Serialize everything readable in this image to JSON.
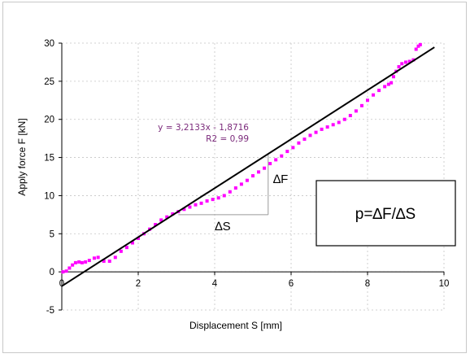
{
  "chart_data": {
    "type": "scatter",
    "xlabel": "Displacement S [mm]",
    "ylabel": "Apply force F [kN]",
    "xlim": [
      0,
      10
    ],
    "ylim": [
      -5,
      30
    ],
    "x_ticks": [
      "0",
      "2",
      "4",
      "6",
      "8",
      "10"
    ],
    "y_ticks": [
      "-5",
      "0",
      "5",
      "10",
      "15",
      "20",
      "25",
      "30"
    ],
    "grid": "dashed",
    "colors": {
      "points": "#ff00ff",
      "trendline": "#000000",
      "equation": "#7b2a7b"
    },
    "series": [
      {
        "values": [
          [
            0.03,
            0.0
          ],
          [
            0.12,
            0.1
          ],
          [
            0.2,
            0.5
          ],
          [
            0.28,
            0.9
          ],
          [
            0.36,
            1.2
          ],
          [
            0.45,
            1.3
          ],
          [
            0.53,
            1.2
          ],
          [
            0.62,
            1.3
          ],
          [
            0.72,
            1.5
          ],
          [
            0.85,
            1.8
          ],
          [
            0.95,
            1.9
          ],
          [
            1.1,
            1.4
          ],
          [
            1.25,
            1.4
          ],
          [
            1.4,
            1.9
          ],
          [
            1.55,
            2.7
          ],
          [
            1.7,
            3.2
          ],
          [
            1.85,
            3.8
          ],
          [
            2.0,
            4.4
          ],
          [
            2.15,
            5.0
          ],
          [
            2.3,
            5.6
          ],
          [
            2.45,
            6.2
          ],
          [
            2.6,
            6.8
          ],
          [
            2.75,
            7.2
          ],
          [
            2.9,
            7.6
          ],
          [
            3.05,
            7.9
          ],
          [
            3.2,
            8.2
          ],
          [
            3.35,
            8.5
          ],
          [
            3.5,
            8.8
          ],
          [
            3.65,
            9.0
          ],
          [
            3.8,
            9.3
          ],
          [
            3.95,
            9.5
          ],
          [
            4.1,
            9.7
          ],
          [
            4.25,
            10.0
          ],
          [
            4.4,
            10.5
          ],
          [
            4.55,
            11.0
          ],
          [
            4.7,
            11.5
          ],
          [
            4.85,
            12.0
          ],
          [
            5.0,
            12.6
          ],
          [
            5.15,
            13.1
          ],
          [
            5.3,
            13.6
          ],
          [
            5.45,
            14.2
          ],
          [
            5.6,
            14.7
          ],
          [
            5.75,
            15.2
          ],
          [
            5.9,
            15.8
          ],
          [
            6.05,
            16.3
          ],
          [
            6.2,
            16.9
          ],
          [
            6.35,
            17.4
          ],
          [
            6.5,
            17.9
          ],
          [
            6.65,
            18.3
          ],
          [
            6.8,
            18.7
          ],
          [
            6.95,
            19.0
          ],
          [
            7.1,
            19.3
          ],
          [
            7.25,
            19.6
          ],
          [
            7.4,
            20.0
          ],
          [
            7.55,
            20.5
          ],
          [
            7.7,
            21.1
          ],
          [
            7.85,
            21.8
          ],
          [
            8.0,
            22.5
          ],
          [
            8.15,
            23.2
          ],
          [
            8.3,
            23.8
          ],
          [
            8.45,
            24.3
          ],
          [
            8.55,
            24.6
          ],
          [
            8.62,
            24.8
          ],
          [
            8.68,
            25.6
          ],
          [
            8.75,
            26.3
          ],
          [
            8.82,
            26.9
          ],
          [
            8.9,
            27.3
          ],
          [
            9.0,
            27.5
          ],
          [
            9.1,
            27.6
          ],
          [
            9.2,
            27.8
          ],
          [
            9.27,
            29.2
          ],
          [
            9.33,
            29.6
          ],
          [
            9.38,
            29.8
          ]
        ]
      }
    ],
    "trendline": {
      "slope": 3.2133,
      "intercept": -1.8716,
      "x_range": [
        0,
        9.75
      ],
      "equation": "y = 3,2133x - 1,8716",
      "r2": "R2 = 0,99"
    },
    "slope_triangle": {
      "s_from": 3.05,
      "s_to": 5.4,
      "f_bottom": 7.5,
      "f_top": 15.5,
      "delta_s_label": "∆S",
      "delta_f_label": "∆F"
    },
    "formula_box": "p=∆F/∆S"
  }
}
